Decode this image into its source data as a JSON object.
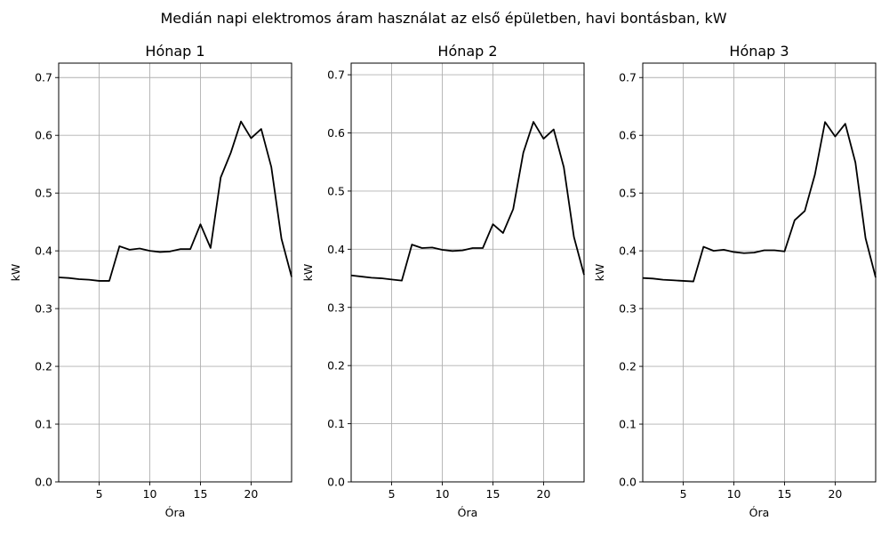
{
  "chart_data": {
    "suptitle": "Medián napi elektromos áram használat az első épületben, havi bontásban, kW",
    "line_color": "#000000",
    "panels": [
      {
        "type": "line",
        "title": "Hónap 1",
        "xlabel": "Óra",
        "ylabel": "kW",
        "xlim": [
          1,
          24
        ],
        "ylim": [
          0,
          0.725
        ],
        "xticks": [
          5,
          10,
          15,
          20
        ],
        "yticks": [
          0.0,
          0.1,
          0.2,
          0.3,
          0.4,
          0.5,
          0.6,
          0.7
        ],
        "ytick_labels": [
          "0.0",
          "0.1",
          "0.2",
          "0.3",
          "0.4",
          "0.5",
          "0.6",
          "0.7"
        ],
        "grid": true,
        "x": [
          1,
          2,
          3,
          4,
          5,
          6,
          7,
          8,
          9,
          10,
          11,
          12,
          13,
          14,
          15,
          16,
          17,
          18,
          19,
          20,
          21,
          22,
          23,
          24
        ],
        "y": [
          0.354,
          0.353,
          0.351,
          0.35,
          0.348,
          0.348,
          0.408,
          0.402,
          0.404,
          0.4,
          0.398,
          0.399,
          0.403,
          0.403,
          0.446,
          0.405,
          0.527,
          0.57,
          0.624,
          0.595,
          0.611,
          0.545,
          0.421,
          0.355
        ]
      },
      {
        "type": "line",
        "title": "Hónap 2",
        "xlabel": "Óra",
        "ylabel": "kW",
        "xlim": [
          1,
          24
        ],
        "ylim": [
          0,
          0.72
        ],
        "xticks": [
          5,
          10,
          15,
          20
        ],
        "yticks": [
          0.0,
          0.1,
          0.2,
          0.3,
          0.4,
          0.5,
          0.6,
          0.7
        ],
        "ytick_labels": [
          "0.0",
          "0.1",
          "0.2",
          "0.3",
          "0.4",
          "0.5",
          "0.6",
          "0.7"
        ],
        "grid": true,
        "x": [
          1,
          2,
          3,
          4,
          5,
          6,
          7,
          8,
          9,
          10,
          11,
          12,
          13,
          14,
          15,
          16,
          17,
          18,
          19,
          20,
          21,
          22,
          23,
          24
        ],
        "y": [
          0.355,
          0.353,
          0.351,
          0.35,
          0.348,
          0.346,
          0.408,
          0.402,
          0.403,
          0.399,
          0.397,
          0.398,
          0.402,
          0.402,
          0.443,
          0.428,
          0.469,
          0.566,
          0.619,
          0.59,
          0.606,
          0.541,
          0.421,
          0.356
        ]
      },
      {
        "type": "line",
        "title": "Hónap 3",
        "xlabel": "Óra",
        "ylabel": "kW",
        "xlim": [
          1,
          24
        ],
        "ylim": [
          0,
          0.725
        ],
        "xticks": [
          5,
          10,
          15,
          20
        ],
        "yticks": [
          0.0,
          0.1,
          0.2,
          0.3,
          0.4,
          0.5,
          0.6,
          0.7
        ],
        "ytick_labels": [
          "0.0",
          "0.1",
          "0.2",
          "0.3",
          "0.4",
          "0.5",
          "0.6",
          "0.7"
        ],
        "grid": true,
        "x": [
          1,
          2,
          3,
          4,
          5,
          6,
          7,
          8,
          9,
          10,
          11,
          12,
          13,
          14,
          15,
          16,
          17,
          18,
          19,
          20,
          21,
          22,
          23,
          24
        ],
        "y": [
          0.353,
          0.352,
          0.35,
          0.349,
          0.348,
          0.347,
          0.407,
          0.4,
          0.402,
          0.398,
          0.396,
          0.397,
          0.401,
          0.401,
          0.399,
          0.453,
          0.469,
          0.532,
          0.623,
          0.598,
          0.62,
          0.553,
          0.422,
          0.354
        ]
      }
    ]
  }
}
